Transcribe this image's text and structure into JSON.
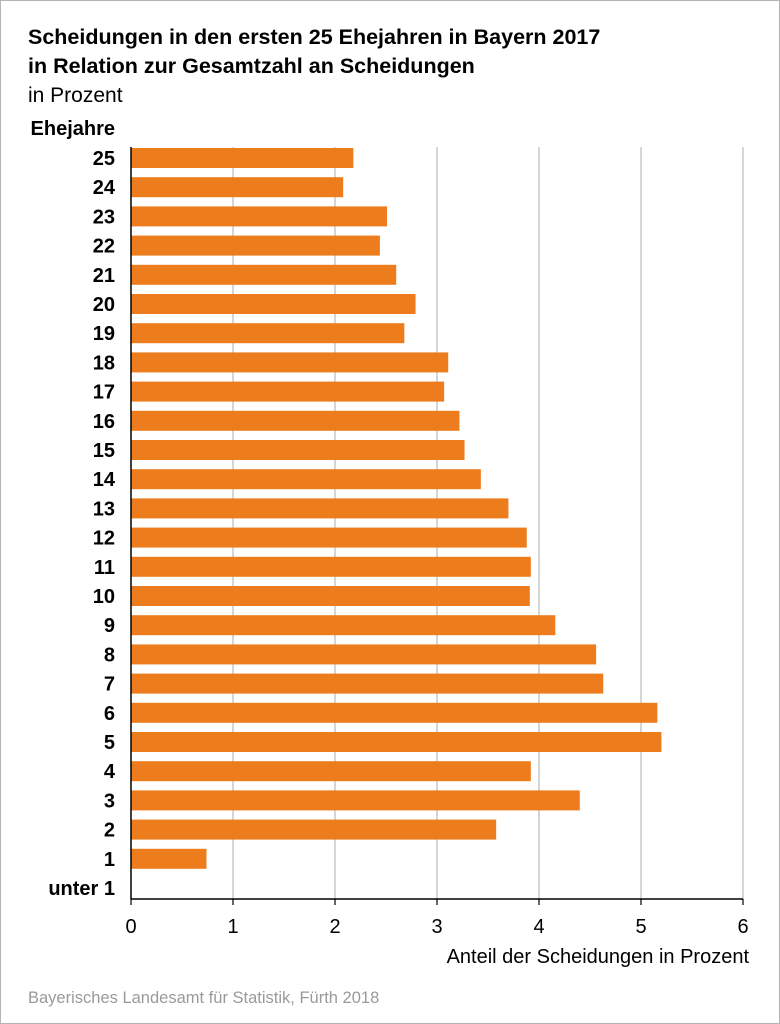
{
  "header": {
    "title_line1": "Scheidungen in den ersten 25 Ehejahren in Bayern 2017",
    "title_line2": "in Relation zur Gesamtzahl an Scheidungen",
    "subtitle": "in Prozent"
  },
  "footer": {
    "source": "Bayerisches Landesamt für Statistik, Fürth 2018"
  },
  "colors": {
    "bar": "#ed7d1c",
    "grid": "#b9b9b9",
    "axis": "#000000",
    "text": "#000000"
  },
  "chart_data": {
    "type": "bar",
    "orientation": "horizontal",
    "title": "Scheidungen in den ersten 25 Ehejahren in Bayern 2017 in Relation zur Gesamtzahl an Scheidungen",
    "subtitle": "in Prozent",
    "xlabel": "Anteil der Scheidungen in Prozent",
    "ylabel": "Ehejahre",
    "xlim": [
      0,
      6
    ],
    "xticks": [
      0,
      1,
      2,
      3,
      4,
      5,
      6
    ],
    "grid": true,
    "legend": "none",
    "categories": [
      "25",
      "24",
      "23",
      "22",
      "21",
      "20",
      "19",
      "18",
      "17",
      "16",
      "15",
      "14",
      "13",
      "12",
      "11",
      "10",
      "9",
      "8",
      "7",
      "6",
      "5",
      "4",
      "3",
      "2",
      "1",
      "unter 1"
    ],
    "values": [
      2.18,
      2.08,
      2.51,
      2.44,
      2.6,
      2.79,
      2.68,
      3.11,
      3.07,
      3.22,
      3.27,
      3.43,
      3.7,
      3.88,
      3.92,
      3.91,
      4.16,
      4.56,
      4.63,
      5.16,
      5.2,
      3.92,
      4.4,
      3.58,
      0.74,
      0
    ]
  }
}
